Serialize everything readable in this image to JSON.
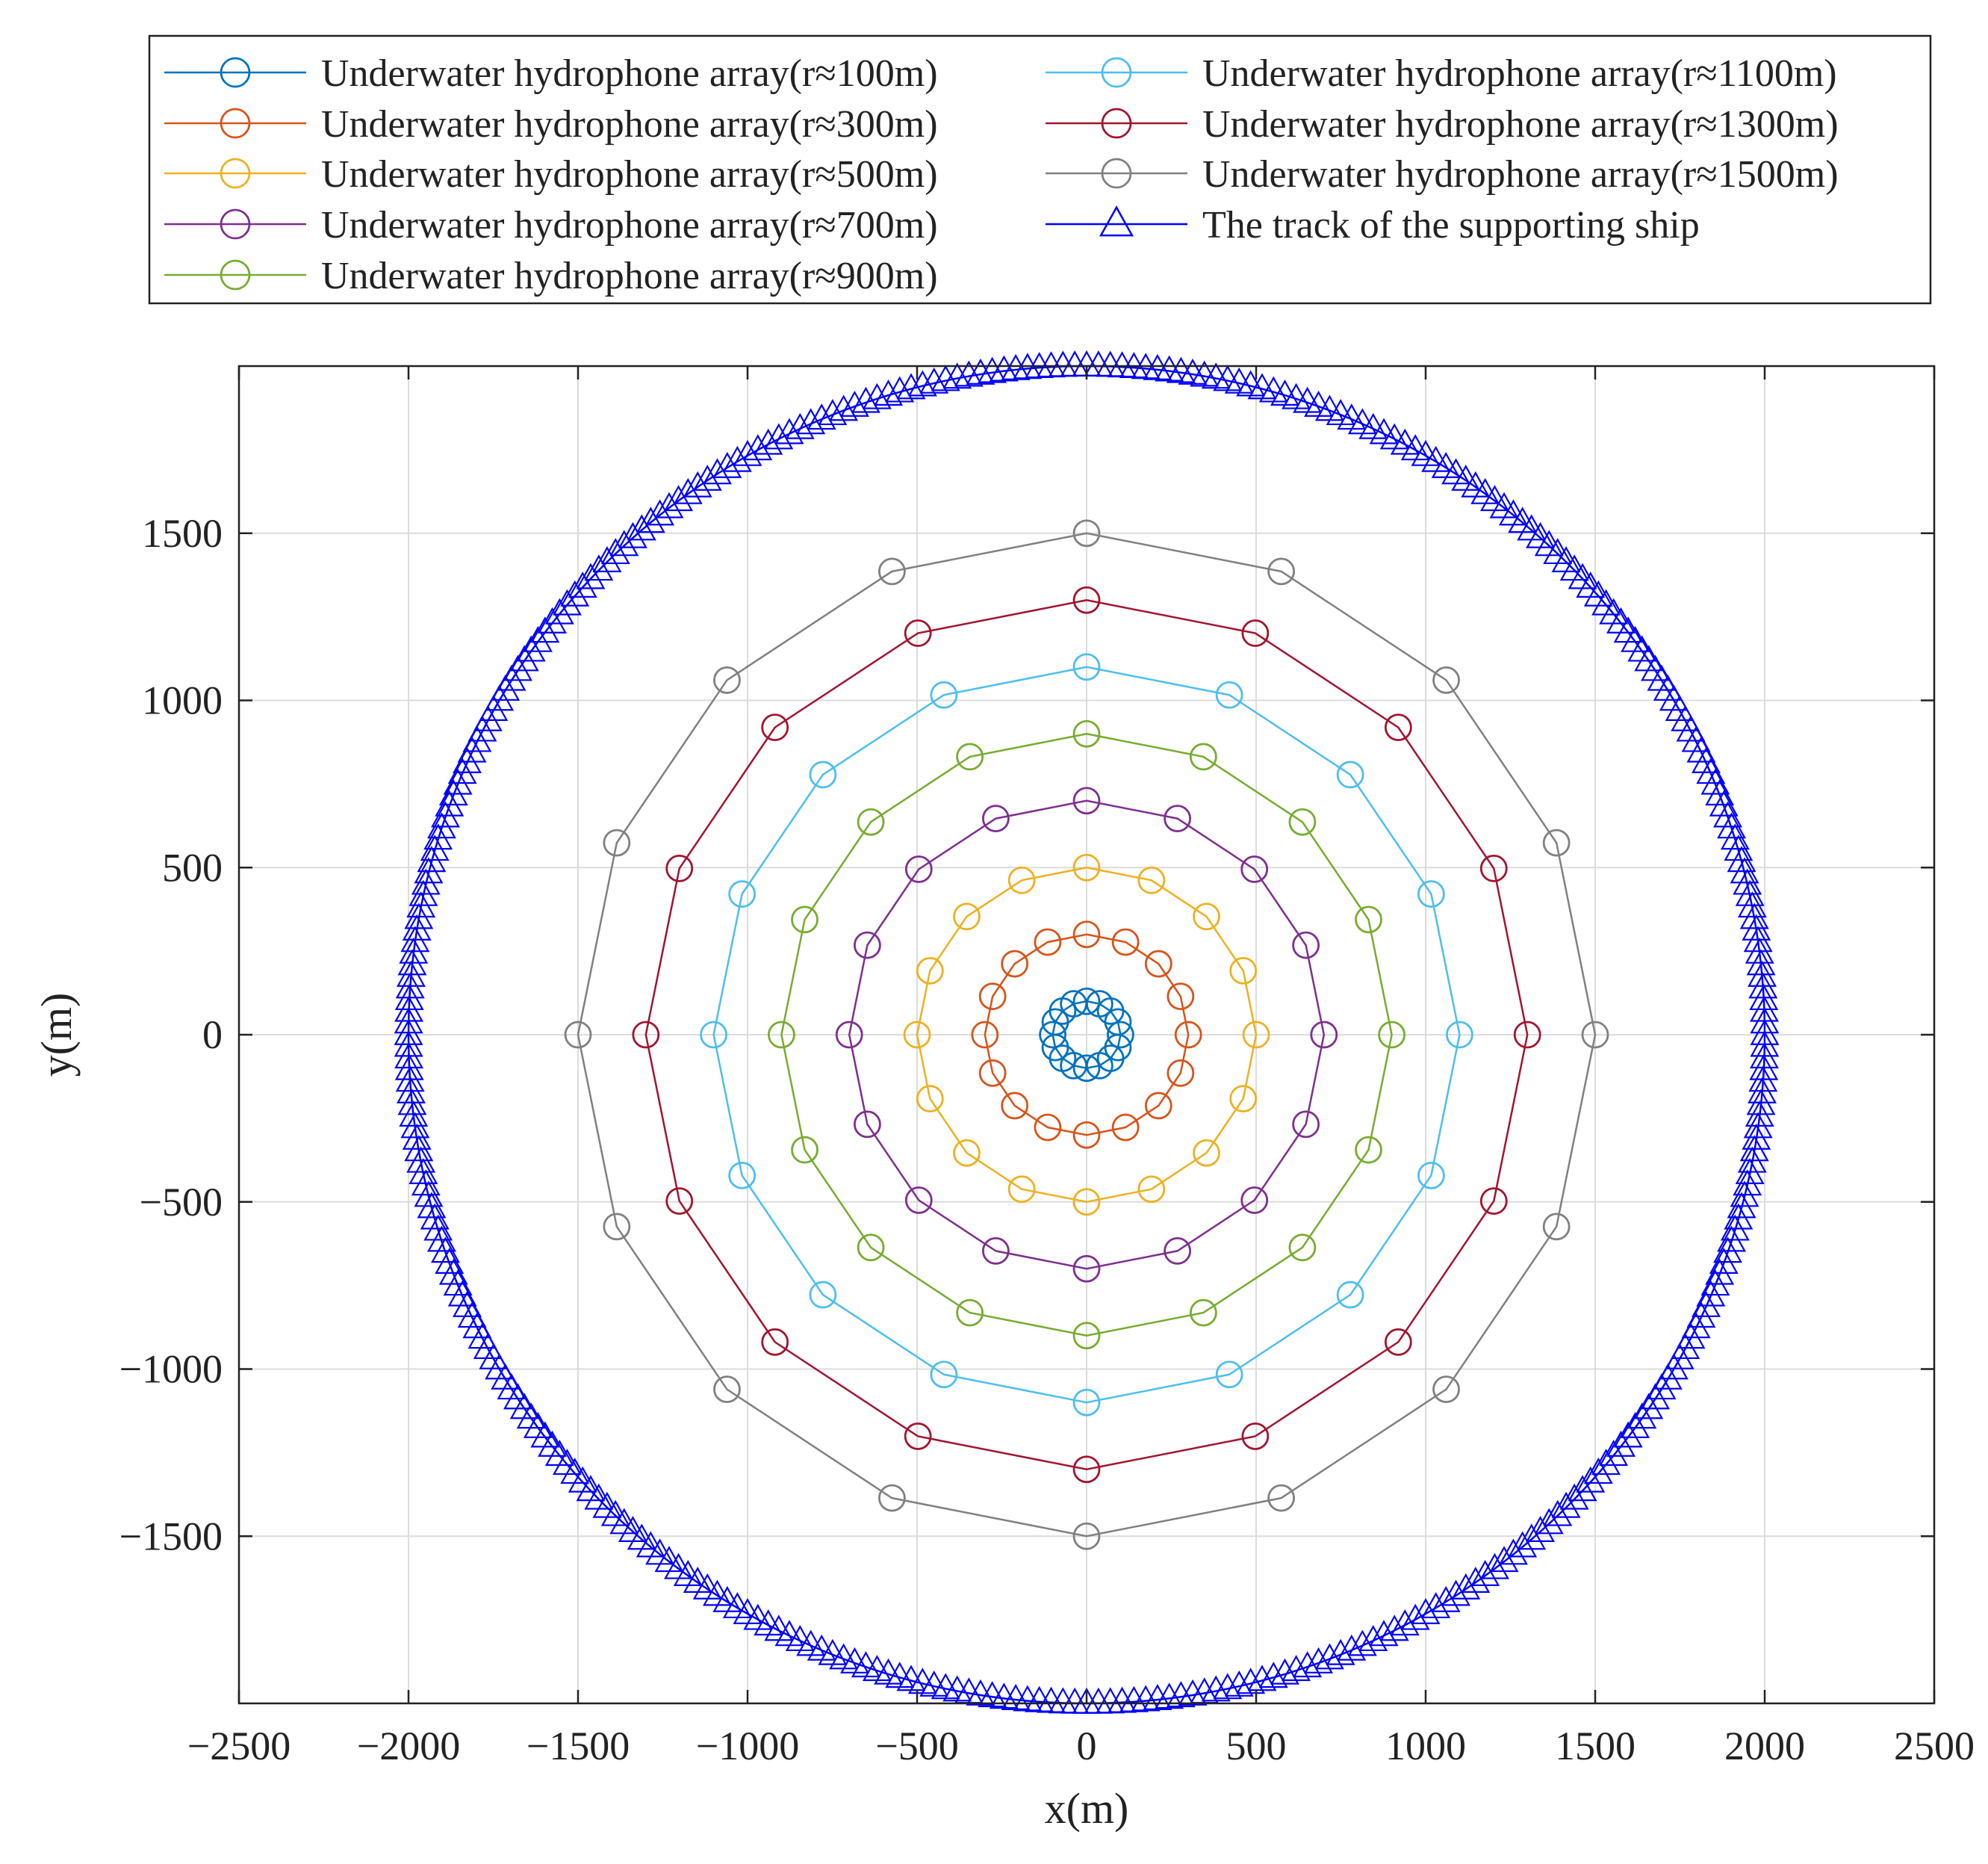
{
  "chart_data": {
    "type": "scatter",
    "title": "",
    "xlabel": "x(m)",
    "ylabel": "y(m)",
    "xlim": [
      -2500,
      2500
    ],
    "ylim": [
      -2000,
      2000
    ],
    "xticks": [
      -2500,
      -2000,
      -1500,
      -1000,
      -500,
      0,
      500,
      1000,
      1500,
      2000,
      2500
    ],
    "xtick_labels": [
      "−2500",
      "−2000",
      "−1500",
      "−1000",
      "−500",
      "0",
      "500",
      "1000",
      "1500",
      "2000",
      "2500"
    ],
    "yticks": [
      -1500,
      -1000,
      -500,
      0,
      500,
      1000,
      1500
    ],
    "ytick_labels": [
      "−1500",
      "−1000",
      "−500",
      "0",
      "500",
      "1000",
      "1500"
    ],
    "grid": true,
    "legend_position": "top, above plot, two columns",
    "series": [
      {
        "name": "Underwater hydrophone array(r≈100m)",
        "color": "#0072BD",
        "marker": "circle",
        "radius": 100,
        "points": 16
      },
      {
        "name": "Underwater hydrophone array(r≈300m)",
        "color": "#D95319",
        "marker": "circle",
        "radius": 300,
        "points": 16
      },
      {
        "name": "Underwater hydrophone array(r≈500m)",
        "color": "#EDB120",
        "marker": "circle",
        "radius": 500,
        "points": 16
      },
      {
        "name": "Underwater hydrophone array(r≈700m)",
        "color": "#7E2F8E",
        "marker": "circle",
        "radius": 700,
        "points": 16
      },
      {
        "name": "Underwater hydrophone array(r≈900m)",
        "color": "#77AC30",
        "marker": "circle",
        "radius": 900,
        "points": 16
      },
      {
        "name": "Underwater hydrophone array(r≈1100m)",
        "color": "#4DBEEE",
        "marker": "circle",
        "radius": 1100,
        "points": 16
      },
      {
        "name": "Underwater hydrophone array(r≈1300m)",
        "color": "#A2142F",
        "marker": "circle",
        "radius": 1300,
        "points": 16
      },
      {
        "name": "Underwater hydrophone array(r≈1500m)",
        "color": "#808080",
        "marker": "circle",
        "radius": 1500,
        "points": 16
      },
      {
        "name": "The track of the supporting ship",
        "color": "#0000FF",
        "marker": "triangle",
        "radius": 2000,
        "points": 360
      }
    ]
  }
}
